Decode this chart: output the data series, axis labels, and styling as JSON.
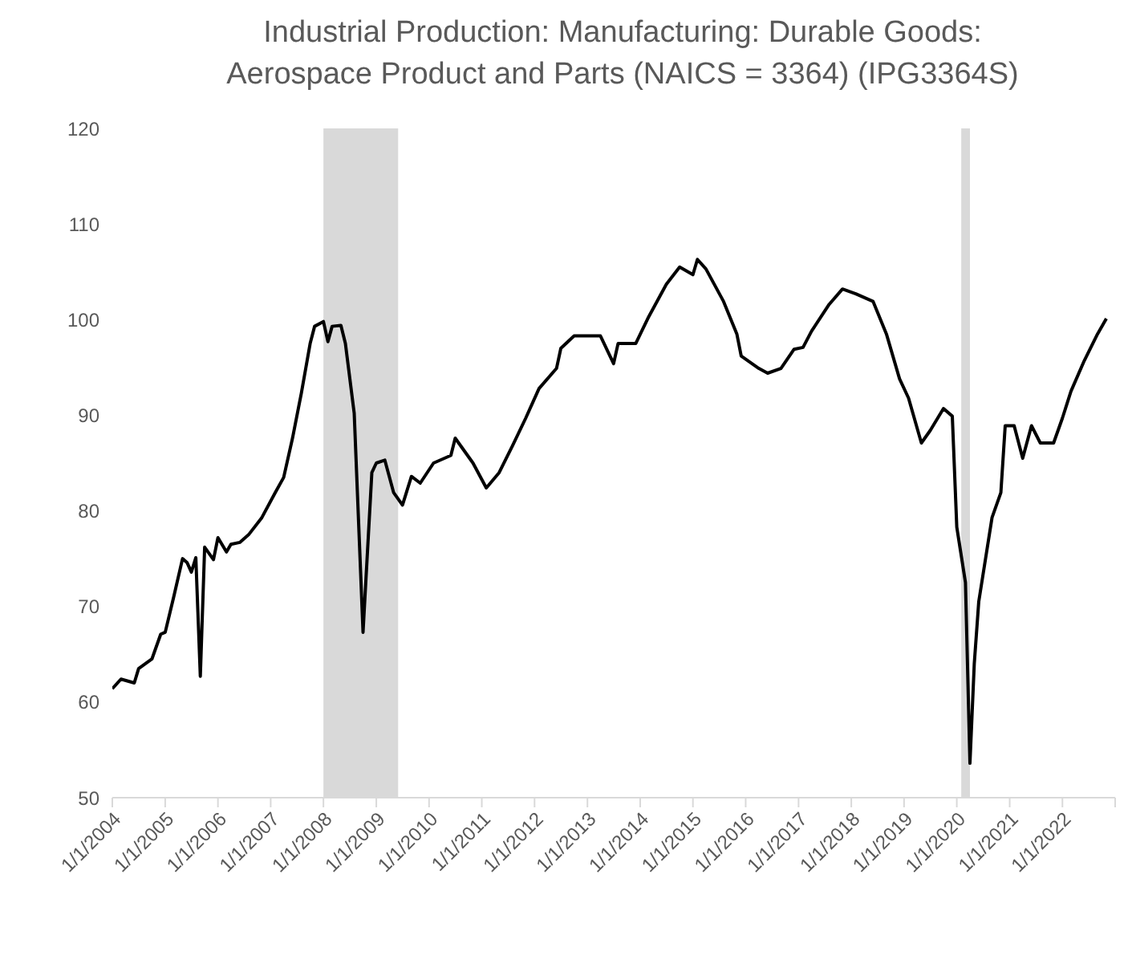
{
  "chart_data": {
    "type": "line",
    "title": "Industrial Production: Manufacturing: Durable Goods: Aerospace Product and Parts (NAICS = 3364) (IPG3364S)",
    "x": [
      "2004-01",
      "2004-03",
      "2004-06",
      "2004-07",
      "2004-10",
      "2004-12",
      "2005-01",
      "2005-03",
      "2005-05",
      "2005-06",
      "2005-07",
      "2005-08",
      "2005-09",
      "2005-10",
      "2005-12",
      "2006-01",
      "2006-03",
      "2006-04",
      "2006-06",
      "2006-08",
      "2006-11",
      "2007-02",
      "2007-04",
      "2007-06",
      "2007-08",
      "2007-10",
      "2007-11",
      "2008-01",
      "2008-02",
      "2008-03",
      "2008-05",
      "2008-06",
      "2008-08",
      "2008-10",
      "2008-12",
      "2009-01",
      "2009-03",
      "2009-05",
      "2009-07",
      "2009-09",
      "2009-11",
      "2010-02",
      "2010-06",
      "2010-07",
      "2010-11",
      "2011-02",
      "2011-05",
      "2011-08",
      "2011-11",
      "2012-02",
      "2012-06",
      "2012-07",
      "2012-10",
      "2013-01",
      "2013-04",
      "2013-07",
      "2013-08",
      "2013-12",
      "2014-03",
      "2014-07",
      "2014-10",
      "2015-01",
      "2015-02",
      "2015-04",
      "2015-08",
      "2015-11",
      "2015-12",
      "2016-04",
      "2016-06",
      "2016-09",
      "2016-12",
      "2017-02",
      "2017-04",
      "2017-08",
      "2017-11",
      "2018-02",
      "2018-06",
      "2018-09",
      "2018-12",
      "2019-02",
      "2019-05",
      "2019-07",
      "2019-10",
      "2019-12",
      "2020-01",
      "2020-03",
      "2020-04",
      "2020-05",
      "2020-06",
      "2020-09",
      "2020-11",
      "2020-12",
      "2021-02",
      "2021-04",
      "2021-06",
      "2021-08",
      "2021-11",
      "2022-01",
      "2022-03",
      "2022-06",
      "2022-09",
      "2022-11"
    ],
    "series": [
      {
        "color": "#000000",
        "values": [
          61.4,
          62.4,
          62.0,
          63.5,
          64.5,
          67.1,
          67.3,
          71.0,
          75.0,
          74.6,
          73.6,
          75.1,
          62.7,
          76.2,
          74.9,
          77.2,
          75.7,
          76.5,
          76.7,
          77.5,
          79.3,
          81.9,
          83.5,
          87.6,
          92.3,
          97.5,
          99.3,
          99.8,
          97.7,
          99.3,
          99.4,
          97.5,
          90.2,
          67.3,
          84.0,
          85.0,
          85.3,
          81.9,
          80.6,
          83.6,
          82.9,
          85.0,
          85.8,
          87.6,
          85.0,
          82.4,
          84.0,
          86.8,
          89.7,
          92.8,
          94.9,
          97.0,
          98.3,
          98.3,
          98.3,
          95.4,
          97.5,
          97.5,
          100.3,
          103.7,
          105.5,
          104.7,
          106.3,
          105.3,
          101.9,
          98.5,
          96.2,
          94.9,
          94.4,
          94.9,
          96.9,
          97.1,
          98.8,
          101.6,
          103.2,
          102.7,
          101.9,
          98.5,
          93.8,
          91.8,
          87.1,
          88.4,
          90.7,
          89.9,
          78.3,
          72.5,
          53.6,
          64.0,
          70.5,
          79.3,
          81.9,
          88.9,
          88.9,
          85.5,
          88.9,
          87.1,
          87.1,
          89.7,
          92.5,
          95.7,
          98.5,
          100.1
        ]
      }
    ],
    "bands": [
      {
        "axis": "x",
        "from": "2008-01",
        "to": "2009-06",
        "color": "#d9d9d9"
      },
      {
        "axis": "x",
        "from": "2020-02",
        "to": "2020-04",
        "color": "#d9d9d9"
      }
    ],
    "xlim": [
      "2004-01",
      "2023-01"
    ],
    "xticks": [
      {
        "value": "2004-01-01",
        "label": "1/1/2004"
      },
      {
        "value": "2005-01-01",
        "label": "1/1/2005"
      },
      {
        "value": "2006-01-01",
        "label": "1/1/2006"
      },
      {
        "value": "2007-01-01",
        "label": "1/1/2007"
      },
      {
        "value": "2008-01-01",
        "label": "1/1/2008"
      },
      {
        "value": "2009-01-01",
        "label": "1/1/2009"
      },
      {
        "value": "2010-01-01",
        "label": "1/1/2010"
      },
      {
        "value": "2011-01-01",
        "label": "1/1/2011"
      },
      {
        "value": "2012-01-01",
        "label": "1/1/2012"
      },
      {
        "value": "2013-01-01",
        "label": "1/1/2013"
      },
      {
        "value": "2014-01-01",
        "label": "1/1/2014"
      },
      {
        "value": "2015-01-01",
        "label": "1/1/2015"
      },
      {
        "value": "2016-01-01",
        "label": "1/1/2016"
      },
      {
        "value": "2017-01-01",
        "label": "1/1/2017"
      },
      {
        "value": "2018-01-01",
        "label": "1/1/2018"
      },
      {
        "value": "2019-01-01",
        "label": "1/1/2019"
      },
      {
        "value": "2020-01-01",
        "label": "1/1/2020"
      },
      {
        "value": "2021-01-01",
        "label": "1/1/2021"
      },
      {
        "value": "2022-01-01",
        "label": "1/1/2022"
      },
      {
        "value": "2023-01-01",
        "label": null
      }
    ],
    "ylim": [
      50,
      120
    ],
    "yticks": [
      50,
      60,
      70,
      80,
      90,
      100,
      110,
      120
    ],
    "grid": false,
    "marker": "none",
    "line_style": "solid"
  }
}
